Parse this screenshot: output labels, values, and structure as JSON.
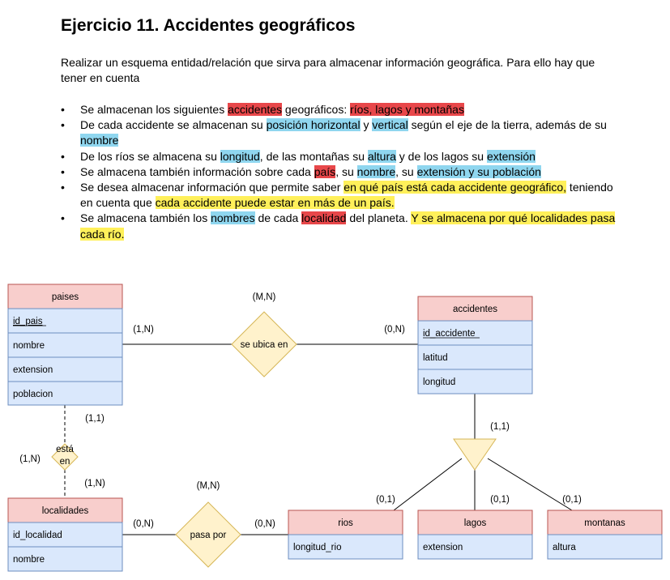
{
  "title": "Ejercicio 11. Accidentes geográficos",
  "intro": "Realizar un esquema entidad/relación que sirva para almacenar información geográfica. Para ello hay que tener en cuenta",
  "requirements": [
    [
      {
        "t": "Se almacenan los siguientes "
      },
      {
        "t": "accidentes",
        "hl": "red"
      },
      {
        "t": " geográficos: "
      },
      {
        "t": "ríos, lagos y montañas",
        "hl": "red"
      }
    ],
    [
      {
        "t": "De cada accidente se almacenan su "
      },
      {
        "t": "posición horizontal",
        "hl": "blue"
      },
      {
        "t": " y "
      },
      {
        "t": "vertical",
        "hl": "blue"
      },
      {
        "t": " según el eje de la tierra, además de su "
      },
      {
        "t": "nombre",
        "hl": "blue"
      }
    ],
    [
      {
        "t": "De los ríos se almacena su "
      },
      {
        "t": "longitud",
        "hl": "blue"
      },
      {
        "t": ", de las montañas su "
      },
      {
        "t": "altura",
        "hl": "blue"
      },
      {
        "t": " y de los lagos su "
      },
      {
        "t": "extensión",
        "hl": "blue"
      }
    ],
    [
      {
        "t": "Se almacena también información sobre cada "
      },
      {
        "t": "país",
        "hl": "red"
      },
      {
        "t": ", su "
      },
      {
        "t": "nombre",
        "hl": "blue"
      },
      {
        "t": ", su "
      },
      {
        "t": "extensión y su población",
        "hl": "blue"
      }
    ],
    [
      {
        "t": "Se desea almacenar información que permite saber "
      },
      {
        "t": "en qué país está cada accidente geográfico,",
        "hl": "yellow"
      },
      {
        "t": " teniendo en cuenta que "
      },
      {
        "t": "cada accidente puede estar en más de un país.",
        "hl": "yellow"
      }
    ],
    [
      {
        "t": "Se almacena también los "
      },
      {
        "t": "nombres",
        "hl": "blue"
      },
      {
        "t": " de cada "
      },
      {
        "t": "localidad",
        "hl": "red"
      },
      {
        "t": " del planeta. "
      },
      {
        "t": "Y se almacena por qué localidades pasa cada río.",
        "hl": "yellow"
      }
    ]
  ],
  "colors": {
    "entity_header": "#f8cecc",
    "entity_header_border": "#b85450",
    "attribute_fill": "#dae8fc",
    "attribute_border": "#6c8ebf",
    "relation_fill": "#fff2cc",
    "relation_border": "#d6b656",
    "highlight_red": "#e8474a",
    "highlight_blue": "#8fd6ef",
    "highlight_yellow": "#fff05a"
  },
  "entities": {
    "paises": {
      "name": "paises",
      "attrs": [
        "id_pais",
        "nombre",
        "extension",
        "poblacion"
      ]
    },
    "accidentes": {
      "name": "accidentes",
      "attrs": [
        "id_accidente",
        "latitud",
        "longitud"
      ]
    },
    "localidades": {
      "name": "localidades",
      "attrs": [
        "id_localidad",
        "nombre"
      ]
    },
    "rios": {
      "name": "rios",
      "attrs": [
        "longitud_rio"
      ]
    },
    "lagos": {
      "name": "lagos",
      "attrs": [
        "extension"
      ]
    },
    "montanas": {
      "name": "montanas",
      "attrs": [
        "altura"
      ]
    }
  },
  "relations": {
    "se_ubica_en": {
      "label": "se ubica en",
      "card": "(M,N)",
      "left": "(1,N)",
      "right": "(0,N)"
    },
    "pasa_por": {
      "label": "pasa por",
      "card": "(M,N)",
      "left": "(0,N)",
      "right": "(0,N)"
    },
    "esta_en": {
      "label_line1": "está",
      "label_line2": "en",
      "card": "(1,N)",
      "top": "(1,1)",
      "bottom": "(1,N)"
    }
  },
  "hierarchy": {
    "top": "(1,1)",
    "rios": "(0,1)",
    "lagos": "(0,1)",
    "montanas": "(0,1)"
  }
}
